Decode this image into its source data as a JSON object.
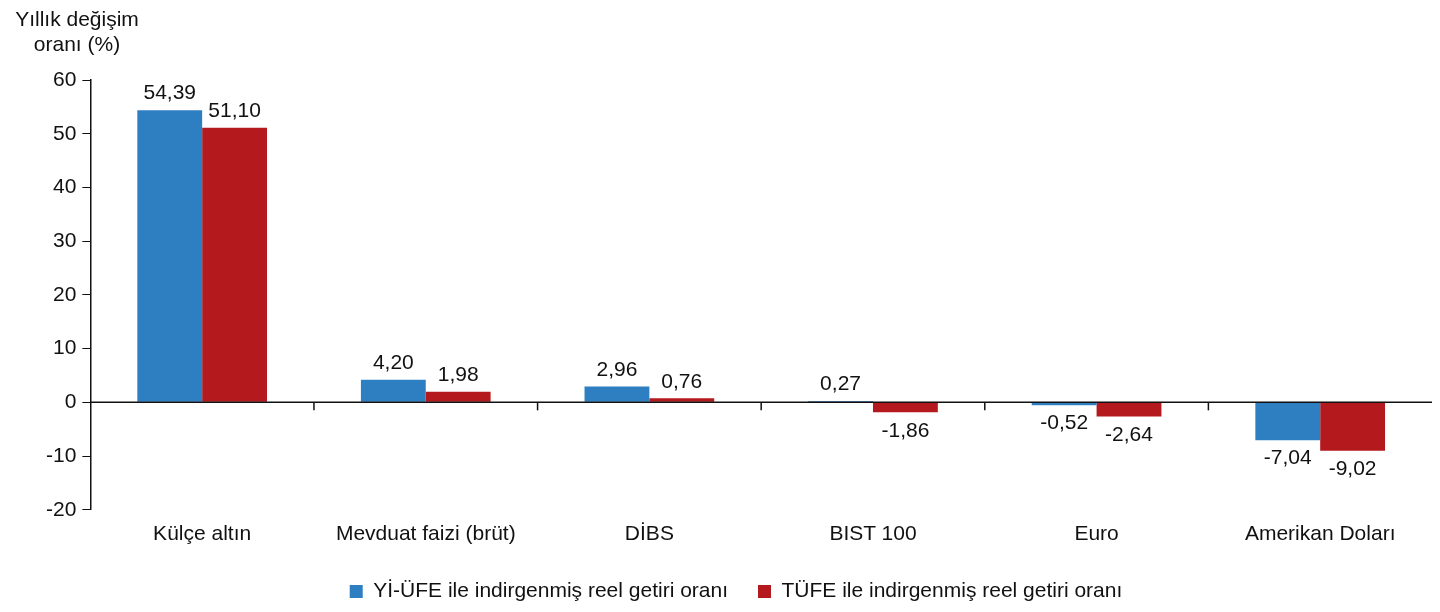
{
  "chart_data": {
    "type": "bar",
    "ylabel": "Yıllık değişim oranı (%)",
    "categories": [
      "Külçe altın",
      "Mevduat faizi (brüt)",
      "DİBS",
      "BIST 100",
      "Euro",
      "Amerikan Doları"
    ],
    "series": [
      {
        "name": "Yİ-ÜFE ile indirgenmiş reel getiri oranı",
        "color": "#2e7fc1",
        "values": [
          54.39,
          4.2,
          2.96,
          0.27,
          -0.52,
          -7.04
        ],
        "value_labels": [
          "54,39",
          "4,20",
          "2,96",
          "0,27",
          "-0,52",
          "-7,04"
        ]
      },
      {
        "name": "TÜFE ile indirgenmiş reel getiri oranı",
        "color": "#b3191d",
        "values": [
          51.1,
          1.98,
          0.76,
          -1.86,
          -2.64,
          -9.02
        ],
        "value_labels": [
          "51,10",
          "1,98",
          "0,76",
          "-1,86",
          "-2,64",
          "-9,02"
        ]
      }
    ],
    "ylim": [
      -20,
      60
    ],
    "yticks": [
      -20,
      -10,
      0,
      10,
      20,
      30,
      40,
      50,
      60
    ],
    "legend": "bottom"
  }
}
